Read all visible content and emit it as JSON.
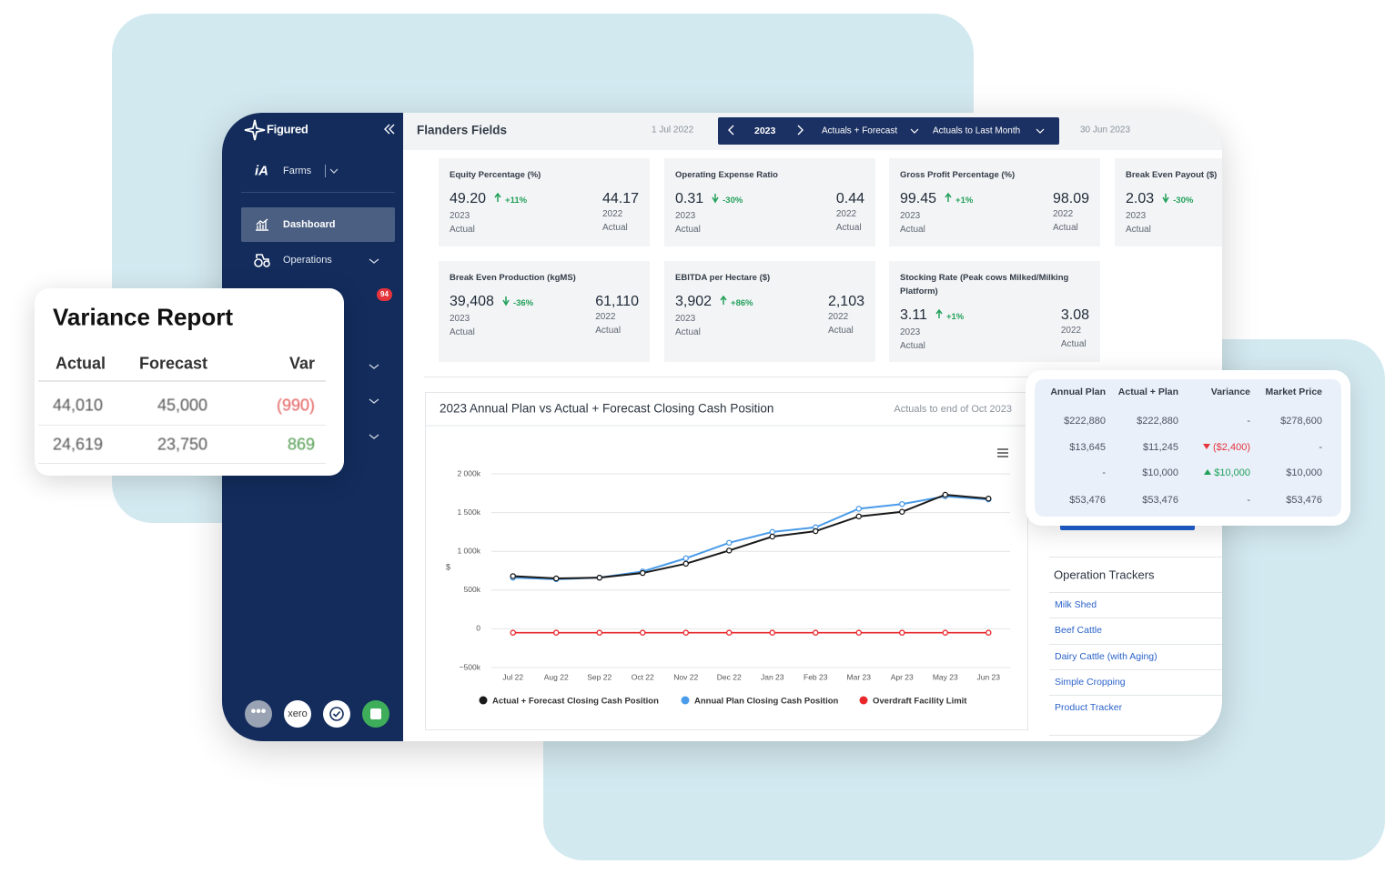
{
  "sidebar": {
    "brand": "Figured",
    "farms": "Farms",
    "nav": [
      "Dashboard",
      "Operations"
    ],
    "badge": "94",
    "app": "xero"
  },
  "header": {
    "farm": "Flanders Fields",
    "start": "1 Jul 2022",
    "year": "2023",
    "view": "Actuals + Forecast",
    "period": "Actuals to Last Month",
    "end": "30 Jun 2023"
  },
  "kpis": [
    {
      "title": "Equity Percentage (%)",
      "value": "49.20",
      "change": "+11%",
      "trend": "up",
      "year": "2023",
      "basis": "Actual",
      "prior_value": "44.17",
      "prior_year": "2022",
      "prior_basis": "Actual"
    },
    {
      "title": "Operating Expense Ratio",
      "value": "0.31",
      "change": "-30%",
      "trend": "down",
      "year": "2023",
      "basis": "Actual",
      "prior_value": "0.44",
      "prior_year": "2022",
      "prior_basis": "Actual"
    },
    {
      "title": "Gross Profit Percentage (%)",
      "value": "99.45",
      "change": "+1%",
      "trend": "up",
      "year": "2023",
      "basis": "Actual",
      "prior_value": "98.09",
      "prior_year": "2022",
      "prior_basis": "Actual"
    },
    {
      "title": "Break Even Payout ($)",
      "value": "2.03",
      "change": "-30%",
      "trend": "down",
      "year": "2023",
      "basis": "Actual"
    },
    {
      "title": "Break Even Production (kgMS)",
      "value": "39,408",
      "change": "-36%",
      "trend": "down",
      "year": "2023",
      "basis": "Actual",
      "prior_value": "61,110",
      "prior_year": "2022",
      "prior_basis": "Actual"
    },
    {
      "title": "EBITDA per Hectare ($)",
      "value": "3,902",
      "change": "+86%",
      "trend": "up",
      "year": "2023",
      "basis": "Actual",
      "prior_value": "2,103",
      "prior_year": "2022",
      "prior_basis": "Actual"
    },
    {
      "title": "Stocking Rate (Peak cows Milked/Milking Platform)",
      "value": "3.11",
      "change": "+1%",
      "trend": "up",
      "year": "2023",
      "basis": "Actual",
      "prior_value": "3.08",
      "prior_year": "2022",
      "prior_basis": "Actual"
    }
  ],
  "chart_data": {
    "type": "line",
    "title": "2023 Annual Plan vs Actual + Forecast Closing Cash Position",
    "subtitle": "Actuals to end of Oct 2023",
    "y_label": "$",
    "categories": [
      "Jul 22",
      "Aug 22",
      "Sep 22",
      "Oct 22",
      "Nov 22",
      "Dec 22",
      "Jan 23",
      "Feb 23",
      "Mar 23",
      "Apr 23",
      "May 23",
      "Jun 23"
    ],
    "series": [
      {
        "name": "Actual + Forecast Closing Cash Position",
        "color": "#1a1a1a",
        "values": [
          680000,
          650000,
          660000,
          720000,
          840000,
          1010000,
          1190000,
          1260000,
          1450000,
          1510000,
          1730000,
          1680000
        ]
      },
      {
        "name": "Annual Plan Closing Cash Position",
        "color": "#4a9be8",
        "values": [
          660000,
          640000,
          660000,
          740000,
          910000,
          1110000,
          1250000,
          1310000,
          1550000,
          1610000,
          1710000,
          1670000
        ]
      },
      {
        "name": "Overdraft Facility Limit",
        "color": "#e8272b",
        "values": [
          -50000,
          -50000,
          -50000,
          -50000,
          -50000,
          -50000,
          -50000,
          -50000,
          -50000,
          -50000,
          -50000,
          -50000
        ]
      }
    ],
    "ylim": [
      -500000,
      2000000
    ],
    "yticks": [
      {
        "value": -500000,
        "label": "−500k"
      },
      0,
      {
        "value": 500000,
        "label": "500k"
      },
      {
        "value": 1000000,
        "label": "1 000k"
      },
      {
        "value": 1500000,
        "label": "1 500k"
      },
      {
        "value": 2000000,
        "label": "2 000k"
      }
    ],
    "grid": true
  },
  "variance_report": {
    "title": "Variance Report",
    "columns": [
      "Actual",
      "Forecast",
      "Var"
    ],
    "rows": [
      [
        "44,010",
        "45,000",
        "(990)"
      ],
      [
        "24,619",
        "23,750",
        "869"
      ]
    ]
  },
  "market_table": {
    "columns": [
      "Annual Plan",
      "Actual + Plan",
      "Variance",
      "Market Price"
    ],
    "rows": [
      [
        "$222,880",
        "$222,880",
        "-",
        "$278,600"
      ],
      [
        "$13,645",
        "$11,245",
        "($2,400)",
        "-"
      ],
      [
        "-",
        "$10,000",
        "$10,000",
        "$10,000"
      ],
      [
        "$53,476",
        "$53,476",
        "-",
        "$53,476"
      ]
    ],
    "variance_trend": [
      null,
      "down",
      "up",
      null
    ]
  },
  "trackers": {
    "title": "Operation Trackers",
    "items": [
      "Milk Shed",
      "Beef Cattle",
      "Dairy Cattle (with Aging)",
      "Simple Cropping",
      "Product Tracker"
    ]
  }
}
